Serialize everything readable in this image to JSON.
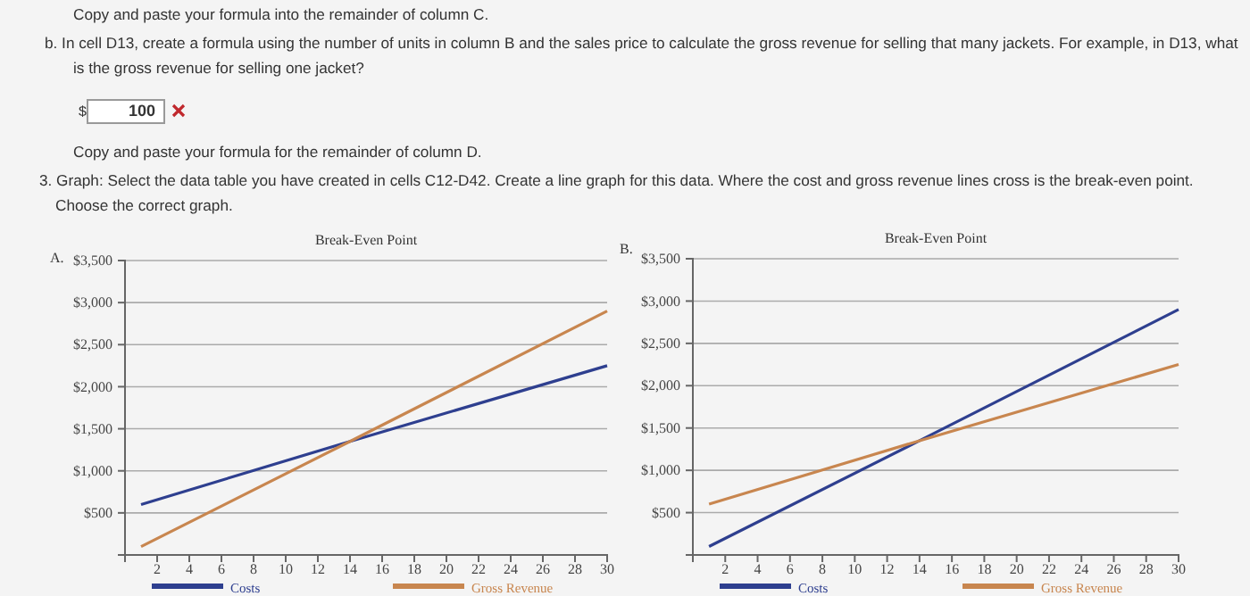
{
  "chart_data": [
    {
      "type": "line",
      "title": "Break-Even Point",
      "x": [
        1,
        14,
        30
      ],
      "xlim": [
        0,
        30
      ],
      "xticks": [
        2,
        4,
        6,
        8,
        10,
        12,
        14,
        16,
        18,
        20,
        22,
        24,
        26,
        28,
        30
      ],
      "ylim": [
        0,
        3500
      ],
      "yticks": [
        {
          "value": 500,
          "label": "$500"
        },
        {
          "value": 1000,
          "label": "$1,000"
        },
        {
          "value": 1500,
          "label": "$1,500"
        },
        {
          "value": 2000,
          "label": "$2,000"
        },
        {
          "value": 2500,
          "label": "$2,500"
        },
        {
          "value": 3000,
          "label": "$3,000"
        },
        {
          "value": 3500,
          "label": "$3,500"
        }
      ],
      "grid": "y",
      "legend": "bottom",
      "marker": "none",
      "series": [
        {
          "name": "Costs",
          "color": "#2e3f8f",
          "values": [
            600,
            1350,
            2250
          ]
        },
        {
          "name": "Gross Revenue",
          "color": "#c8864f",
          "values": [
            100,
            1350,
            2900
          ]
        }
      ],
      "annotations": [
        "Copy and paste your formula into the remainder of column C.",
        "b. In cell D13, create a formula using the number of units in column B and the sales price to calculate the gross revenue for selling that many jackets. For example, in D13, what is the gross revenue for selling one jacket?",
        "$",
        "100",
        "Copy and paste your formula for the remainder of column D.",
        "3. Graph: Select the data table you have created in cells C12-D42. Create a line graph for this data. Where the cost and gross revenue lines cross is the break-even point. Choose the correct graph.",
        "A."
      ]
    },
    {
      "type": "line",
      "title": "Break-Even Point",
      "x": [
        1,
        14,
        30
      ],
      "xlim": [
        0,
        30
      ],
      "xticks": [
        2,
        4,
        6,
        8,
        10,
        12,
        14,
        16,
        18,
        20,
        22,
        24,
        26,
        28,
        30
      ],
      "ylim": [
        0,
        3500
      ],
      "yticks": [
        {
          "value": 500,
          "label": "$500"
        },
        {
          "value": 1000,
          "label": "$1,000"
        },
        {
          "value": 1500,
          "label": "$1,500"
        },
        {
          "value": 2000,
          "label": "$2,000"
        },
        {
          "value": 2500,
          "label": "$2,500"
        },
        {
          "value": 3000,
          "label": "$3,000"
        },
        {
          "value": 3500,
          "label": "$3,500"
        }
      ],
      "grid": "y",
      "legend": "bottom",
      "marker": "none",
      "series": [
        {
          "name": "Costs",
          "color": "#2e3f8f",
          "values": [
            100,
            1350,
            2900
          ]
        },
        {
          "name": "Gross Revenue",
          "color": "#c8864f",
          "values": [
            600,
            1350,
            2250
          ]
        }
      ],
      "annotations": [
        "B."
      ]
    }
  ]
}
